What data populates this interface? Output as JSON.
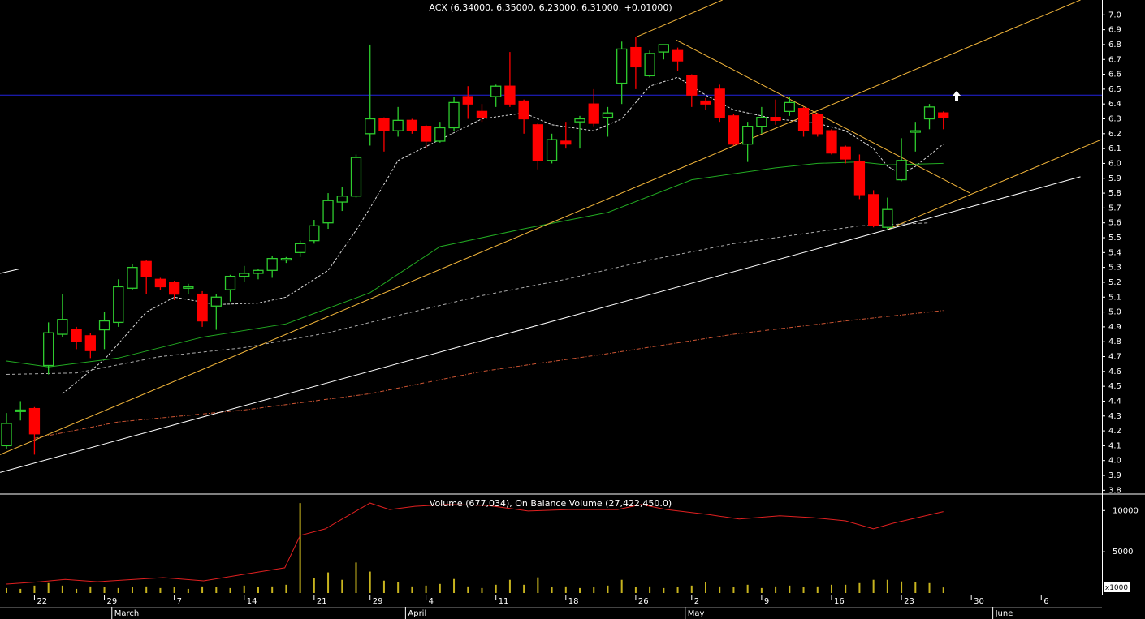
{
  "chart_data": {
    "type": "candlestick",
    "title": "ACX (6.34000, 6.35000, 6.23000, 6.31000, +0.01000)",
    "categories": [
      null,
      null,
      "22",
      null,
      null,
      null,
      null,
      "29",
      null,
      null,
      null,
      null,
      "7",
      null,
      null,
      null,
      null,
      "14",
      null,
      null,
      null,
      null,
      "21",
      null,
      null,
      null,
      "29",
      null,
      null,
      null,
      "4",
      null,
      null,
      null,
      null,
      "11",
      null,
      null,
      null,
      null,
      "18",
      null,
      null,
      null,
      null,
      "26",
      null,
      null,
      null,
      "2",
      null,
      null,
      null,
      null,
      "9",
      null,
      null,
      null,
      null,
      "16",
      null,
      null,
      null,
      null,
      "23",
      null,
      null,
      null,
      null,
      "30",
      null,
      null,
      null,
      null,
      "6",
      null,
      null,
      null,
      null
    ],
    "months": [
      null,
      null,
      null,
      null,
      null,
      null,
      null,
      null,
      "March",
      null,
      null,
      null,
      null,
      null,
      null,
      null,
      null,
      null,
      null,
      null,
      null,
      null,
      null,
      null,
      null,
      null,
      null,
      null,
      null,
      "April",
      null,
      null,
      null,
      null,
      null,
      null,
      null,
      null,
      null,
      null,
      null,
      null,
      null,
      null,
      null,
      null,
      null,
      null,
      null,
      "May",
      null,
      null,
      null,
      null,
      null,
      null,
      null,
      null,
      null,
      null,
      null,
      null,
      null,
      null,
      null,
      null,
      null,
      null,
      null,
      null,
      null,
      "June",
      null,
      null,
      null,
      null,
      null,
      null,
      null
    ],
    "open": [
      4.1,
      4.33,
      4.35,
      4.64,
      4.85,
      4.88,
      4.84,
      4.88,
      4.93,
      5.16,
      5.34,
      5.22,
      5.2,
      5.16,
      5.12,
      5.04,
      5.15,
      5.24,
      5.26,
      5.28,
      5.35,
      5.4,
      5.48,
      5.6,
      5.74,
      5.78,
      6.2,
      6.3,
      6.22,
      6.29,
      6.25,
      6.15,
      6.24,
      6.45,
      6.35,
      6.45,
      6.52,
      6.42,
      6.26,
      6.02,
      6.15,
      6.28,
      6.4,
      6.31,
      6.54,
      6.78,
      6.59,
      6.75,
      6.76,
      6.59,
      6.42,
      6.5,
      6.32,
      6.13,
      6.25,
      6.31,
      6.35,
      6.37,
      6.33,
      6.22,
      6.11,
      6.01,
      5.79,
      5.57,
      5.89,
      6.21,
      6.3,
      6.34,
      null,
      null,
      null,
      null,
      null,
      null,
      null,
      null,
      null,
      null,
      null
    ],
    "high": [
      4.32,
      4.4,
      4.36,
      4.93,
      5.12,
      4.9,
      4.86,
      5.0,
      5.22,
      5.32,
      5.35,
      5.23,
      5.21,
      5.19,
      5.14,
      5.12,
      5.25,
      5.31,
      5.29,
      5.38,
      5.37,
      5.48,
      5.62,
      5.8,
      5.84,
      6.06,
      6.8,
      6.31,
      6.38,
      6.3,
      6.26,
      6.28,
      6.45,
      6.52,
      6.4,
      6.53,
      6.75,
      6.43,
      6.27,
      6.2,
      6.28,
      6.32,
      6.5,
      6.38,
      6.82,
      6.85,
      6.76,
      6.8,
      6.78,
      6.6,
      6.44,
      6.53,
      6.33,
      6.28,
      6.38,
      6.43,
      6.45,
      6.38,
      6.34,
      6.23,
      6.12,
      6.06,
      5.82,
      5.77,
      6.17,
      6.28,
      6.4,
      6.35,
      null,
      null,
      null,
      null,
      null,
      null,
      null,
      null,
      null,
      null,
      null
    ],
    "low": [
      4.08,
      4.27,
      4.04,
      4.58,
      4.83,
      4.75,
      4.69,
      4.75,
      4.9,
      5.15,
      5.12,
      5.15,
      5.08,
      5.12,
      4.9,
      4.88,
      5.07,
      5.2,
      5.22,
      5.23,
      5.33,
      5.37,
      5.46,
      5.56,
      5.68,
      5.77,
      6.12,
      6.08,
      6.18,
      6.2,
      6.1,
      6.14,
      6.22,
      6.3,
      6.28,
      6.38,
      6.38,
      6.2,
      5.96,
      6.0,
      6.1,
      6.1,
      6.25,
      6.18,
      6.4,
      6.5,
      6.58,
      6.7,
      6.62,
      6.38,
      6.36,
      6.28,
      6.12,
      6.01,
      6.2,
      6.26,
      6.32,
      6.18,
      6.18,
      6.06,
      6.0,
      5.76,
      5.57,
      5.55,
      5.88,
      6.08,
      6.23,
      6.23,
      null,
      null,
      null,
      null,
      null,
      null,
      null,
      null,
      null,
      null,
      null
    ],
    "close": [
      4.25,
      4.34,
      4.18,
      4.86,
      4.95,
      4.8,
      4.74,
      4.94,
      5.17,
      5.3,
      5.24,
      5.17,
      5.12,
      5.17,
      4.94,
      5.1,
      5.24,
      5.26,
      5.28,
      5.36,
      5.36,
      5.46,
      5.58,
      5.75,
      5.78,
      6.04,
      6.3,
      6.22,
      6.29,
      6.22,
      6.15,
      6.24,
      6.41,
      6.4,
      6.31,
      6.52,
      6.4,
      6.3,
      6.02,
      6.16,
      6.13,
      6.3,
      6.27,
      6.34,
      6.77,
      6.65,
      6.74,
      6.8,
      6.69,
      6.46,
      6.4,
      6.31,
      6.13,
      6.25,
      6.31,
      6.29,
      6.41,
      6.22,
      6.2,
      6.07,
      6.03,
      5.79,
      5.58,
      5.69,
      6.02,
      6.22,
      6.38,
      6.31,
      null,
      null,
      null,
      null,
      null,
      null,
      null,
      null,
      null,
      null,
      null
    ],
    "up_color": "#2ecc2e",
    "down_color": "#ff0000",
    "ylim": [
      3.78,
      7.1
    ],
    "yticks": [
      3.8,
      3.9,
      {
        "value": 4.0,
        "label": "4.0"
      },
      4.1,
      4.2,
      4.3,
      4.4,
      4.5,
      4.6,
      4.7,
      4.8,
      4.9,
      {
        "value": 5.0,
        "label": "5.0"
      },
      5.1,
      5.2,
      5.3,
      5.4,
      5.5,
      5.6,
      5.7,
      5.8,
      5.9,
      {
        "value": 6.0,
        "label": "6.0"
      },
      6.1,
      6.2,
      6.3,
      6.4,
      6.5,
      6.6,
      6.7,
      6.8,
      6.9,
      {
        "value": 7.0,
        "label": "7.0"
      }
    ],
    "lines": [
      {
        "color": "#dddddd",
        "dash": "3 2",
        "x": [
          4,
          7,
          10,
          12,
          15,
          18,
          20,
          23,
          25,
          26,
          28,
          31,
          34,
          37,
          39,
          42,
          44,
          46,
          48,
          50,
          52,
          55,
          58,
          60,
          62,
          63,
          64,
          65,
          67
        ],
        "values": [
          4.45,
          4.68,
          5.0,
          5.1,
          5.05,
          5.06,
          5.1,
          5.28,
          5.55,
          5.7,
          6.02,
          6.16,
          6.3,
          6.34,
          6.26,
          6.22,
          6.3,
          6.52,
          6.58,
          6.46,
          6.36,
          6.3,
          6.27,
          6.22,
          6.1,
          5.98,
          5.93,
          5.98,
          6.13
        ]
      },
      {
        "color": "#22aa22",
        "dash": "none",
        "x": [
          0,
          3,
          8,
          14,
          20,
          26,
          31,
          37,
          43,
          49,
          55,
          58,
          61,
          63,
          67
        ],
        "values": [
          4.67,
          4.63,
          4.69,
          4.83,
          4.92,
          5.13,
          5.44,
          5.56,
          5.67,
          5.89,
          5.97,
          6.0,
          6.01,
          5.99,
          6.0
        ]
      },
      {
        "color": "#aaaaaa",
        "dash": "4 3",
        "x": [
          0,
          5,
          11,
          17,
          23,
          29,
          34,
          40,
          46,
          52,
          58,
          61,
          66
        ],
        "values": [
          4.58,
          4.59,
          4.7,
          4.76,
          4.86,
          5.0,
          5.11,
          5.22,
          5.35,
          5.46,
          5.54,
          5.58,
          5.6
        ]
      },
      {
        "color": "#cc5533",
        "dash": "5 2 1 2",
        "x": [
          2,
          8,
          17,
          26,
          34,
          43,
          52,
          60,
          67
        ],
        "values": [
          4.15,
          4.26,
          4.34,
          4.45,
          4.6,
          4.72,
          4.85,
          4.94,
          5.01
        ]
      }
    ],
    "trendlines": [
      {
        "color": "#f2b53a",
        "x": [
          -0.46,
          76.8
        ],
        "values": [
          4.04,
          7.1
        ]
      },
      {
        "color": "#f2b53a",
        "x": [
          45,
          51.2
        ],
        "values": [
          6.85,
          7.1
        ]
      },
      {
        "color": "#f2b53a",
        "x": [
          47.9,
          68.9
        ],
        "values": [
          6.83,
          5.8
        ]
      },
      {
        "color": "#f2b53a",
        "x": [
          63.1,
          78.3
        ],
        "values": [
          5.56,
          6.16
        ]
      },
      {
        "color": "#ffffff",
        "x": [
          -0.46,
          76.8
        ],
        "values": [
          3.92,
          5.91
        ]
      },
      {
        "color": "#ffffff",
        "x": [
          -0.46,
          0.93
        ],
        "values": [
          5.26,
          5.29
        ]
      }
    ],
    "hline": {
      "value": 6.46,
      "color": "#2222dd"
    },
    "volume": {
      "type": "bar",
      "title": "Volume (677,034), On Balance Volume (27,422,450.0)",
      "unit_label": "x1000",
      "color": "#c8b41e",
      "values": [
        600,
        500,
        900,
        1200,
        900,
        500,
        800,
        700,
        600,
        700,
        800,
        600,
        700,
        500,
        800,
        700,
        600,
        900,
        700,
        800,
        1000,
        10900,
        1800,
        2500,
        1600,
        3700,
        2600,
        1500,
        1300,
        800,
        900,
        1100,
        1700,
        800,
        600,
        1000,
        1600,
        1000,
        1900,
        700,
        800,
        600,
        700,
        900,
        1600,
        700,
        800,
        600,
        700,
        900,
        1300,
        800,
        700,
        1000,
        600,
        800,
        900,
        700,
        800,
        1000,
        1000,
        1200,
        1600,
        1600,
        1400,
        1300,
        1200,
        677,
        null,
        null,
        null,
        null,
        null,
        null,
        null,
        null,
        null,
        null,
        null
      ],
      "ylim": [
        0,
        11700
      ],
      "yticks": [
        10000,
        5000
      ],
      "y2lim": [
        0,
        32500
      ],
      "obv": {
        "color": "#e02020",
        "axis": "y2",
        "x": [
          0,
          2.4,
          4.2,
          6.5,
          11.2,
          14.1,
          17,
          19.9,
          21,
          22.8,
          24,
          26,
          27.4,
          29.2,
          31.5,
          34.4,
          37.3,
          40.2,
          43.7,
          45.4,
          47.2,
          50.1,
          52.4,
          55.3,
          57.6,
          60,
          62,
          63.4,
          67
        ],
        "values": [
          3000,
          3800,
          4600,
          3800,
          5200,
          4100,
          6300,
          8500,
          19400,
          21600,
          24900,
          30300,
          28100,
          29200,
          29800,
          29500,
          27600,
          28100,
          28100,
          29800,
          28100,
          26500,
          24900,
          26000,
          25400,
          24300,
          21600,
          23500,
          27422
        ]
      }
    }
  }
}
